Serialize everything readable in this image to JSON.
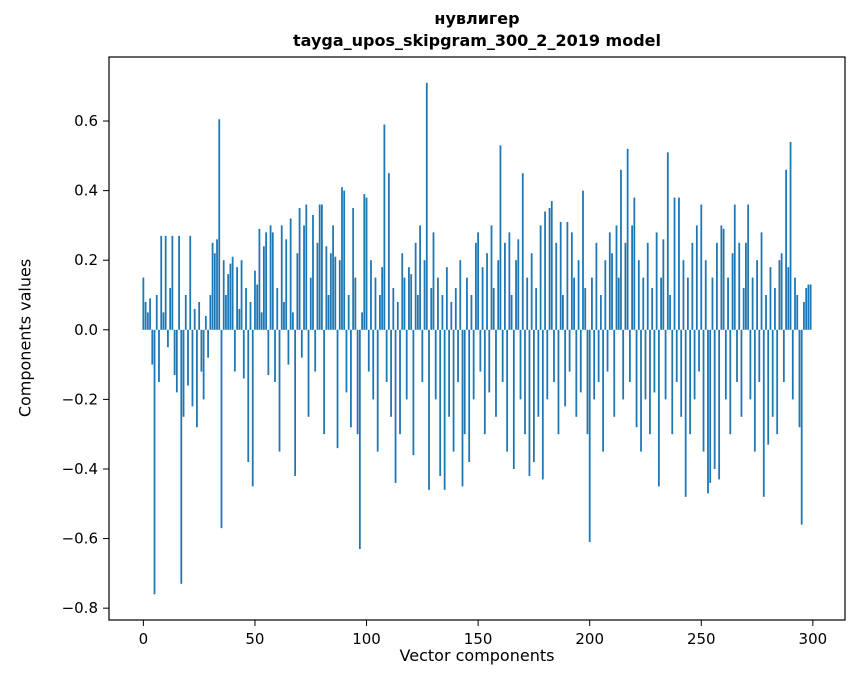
{
  "figure": {
    "title_line1": "нувлигер",
    "title_line2": "tayga_upos_skipgram_300_2_2019 model",
    "xlabel": "Vector components",
    "ylabel": "Components values"
  },
  "chart_data": {
    "type": "bar",
    "title": "нувлигер — tayga_upos_skipgram_300_2_2019 model",
    "xlabel": "Vector components",
    "ylabel": "Components values",
    "legend": "none",
    "grid": false,
    "bar_color": "#1f77b4",
    "bar_width": 0.8,
    "xlim": [
      -15.4,
      314.4
    ],
    "ylim": [
      -0.834,
      0.784
    ],
    "xticks": [
      {
        "v": 0,
        "label": "0"
      },
      {
        "v": 50,
        "label": "50"
      },
      {
        "v": 100,
        "label": "100"
      },
      {
        "v": 150,
        "label": "150"
      },
      {
        "v": 200,
        "label": "200"
      },
      {
        "v": 250,
        "label": "250"
      },
      {
        "v": 300,
        "label": "300"
      }
    ],
    "yticks": [
      {
        "v": -0.8,
        "label": "−0.8"
      },
      {
        "v": -0.6,
        "label": "−0.6"
      },
      {
        "v": -0.4,
        "label": "−0.4"
      },
      {
        "v": -0.2,
        "label": "−0.2"
      },
      {
        "v": 0.0,
        "label": "0.0"
      },
      {
        "v": 0.2,
        "label": "0.2"
      },
      {
        "v": 0.4,
        "label": "0.4"
      },
      {
        "v": 0.6,
        "label": "0.6"
      }
    ],
    "x_start": 0,
    "values": [
      0.15,
      0.08,
      0.05,
      0.09,
      -0.1,
      -0.76,
      0.1,
      -0.15,
      0.27,
      0.05,
      0.27,
      -0.05,
      0.12,
      0.27,
      -0.13,
      -0.18,
      0.27,
      -0.73,
      -0.25,
      0.1,
      -0.16,
      0.27,
      -0.22,
      0.06,
      -0.28,
      0.08,
      -0.12,
      -0.2,
      0.04,
      -0.08,
      0.1,
      0.25,
      0.22,
      0.26,
      0.605,
      -0.57,
      0.2,
      0.1,
      0.16,
      0.19,
      0.21,
      -0.12,
      0.18,
      0.06,
      0.2,
      -0.14,
      0.12,
      -0.38,
      0.08,
      -0.45,
      0.17,
      0.13,
      0.29,
      0.05,
      0.24,
      0.28,
      -0.13,
      0.3,
      0.28,
      -0.15,
      0.12,
      -0.35,
      0.3,
      0.08,
      0.26,
      -0.1,
      0.32,
      0.05,
      -0.42,
      0.22,
      0.35,
      -0.08,
      0.3,
      0.36,
      -0.25,
      0.15,
      0.33,
      -0.12,
      0.25,
      0.36,
      0.36,
      -0.3,
      0.24,
      0.1,
      0.22,
      0.3,
      0.21,
      -0.34,
      0.2,
      0.41,
      0.4,
      -0.18,
      0.1,
      -0.28,
      0.35,
      0.15,
      -0.3,
      -0.63,
      0.05,
      0.39,
      0.38,
      -0.12,
      0.2,
      -0.2,
      0.15,
      -0.35,
      0.1,
      0.18,
      0.59,
      -0.15,
      0.45,
      -0.25,
      0.12,
      -0.44,
      0.08,
      -0.3,
      0.22,
      0.15,
      -0.2,
      0.18,
      0.16,
      -0.36,
      0.25,
      0.1,
      0.3,
      -0.15,
      0.2,
      0.71,
      -0.46,
      0.12,
      0.28,
      -0.2,
      0.15,
      -0.42,
      0.1,
      -0.46,
      0.18,
      -0.25,
      0.08,
      -0.35,
      0.12,
      -0.15,
      0.2,
      -0.45,
      -0.3,
      0.15,
      -0.38,
      0.1,
      -0.2,
      0.25,
      0.28,
      -0.12,
      0.18,
      -0.3,
      0.22,
      -0.18,
      0.3,
      0.12,
      -0.25,
      0.2,
      0.53,
      -0.15,
      0.25,
      -0.35,
      0.28,
      0.1,
      -0.4,
      0.2,
      0.26,
      -0.2,
      0.45,
      -0.3,
      0.15,
      -0.42,
      0.22,
      -0.38,
      0.12,
      -0.25,
      0.3,
      -0.43,
      0.34,
      -0.2,
      0.35,
      0.37,
      -0.15,
      0.25,
      -0.3,
      0.31,
      0.1,
      -0.22,
      0.31,
      -0.12,
      0.28,
      0.15,
      -0.25,
      0.2,
      -0.18,
      0.4,
      0.12,
      -0.3,
      -0.61,
      0.15,
      -0.2,
      0.25,
      -0.15,
      0.1,
      -0.35,
      0.2,
      -0.12,
      0.28,
      0.22,
      -0.25,
      0.3,
      0.15,
      0.46,
      -0.2,
      0.25,
      0.52,
      -0.15,
      0.3,
      0.38,
      -0.28,
      0.2,
      -0.35,
      0.15,
      -0.2,
      0.25,
      -0.3,
      0.12,
      -0.18,
      0.28,
      -0.45,
      0.15,
      0.26,
      -0.2,
      0.51,
      0.1,
      -0.3,
      0.38,
      -0.15,
      0.38,
      -0.25,
      0.2,
      -0.48,
      0.15,
      -0.3,
      0.25,
      -0.2,
      0.3,
      -0.12,
      0.36,
      -0.35,
      0.2,
      -0.47,
      -0.44,
      0.15,
      -0.4,
      0.25,
      -0.43,
      0.3,
      0.29,
      -0.2,
      0.15,
      -0.3,
      0.22,
      0.36,
      -0.15,
      0.25,
      -0.25,
      0.12,
      0.25,
      0.36,
      -0.2,
      0.15,
      -0.35,
      0.2,
      -0.15,
      0.28,
      -0.48,
      0.1,
      -0.33,
      0.18,
      -0.25,
      0.12,
      -0.3,
      0.2,
      0.22,
      -0.15,
      0.46,
      0.18,
      0.54,
      -0.2,
      0.15,
      0.1,
      -0.28,
      -0.56,
      0.08,
      0.12,
      0.13,
      0.13
    ]
  }
}
